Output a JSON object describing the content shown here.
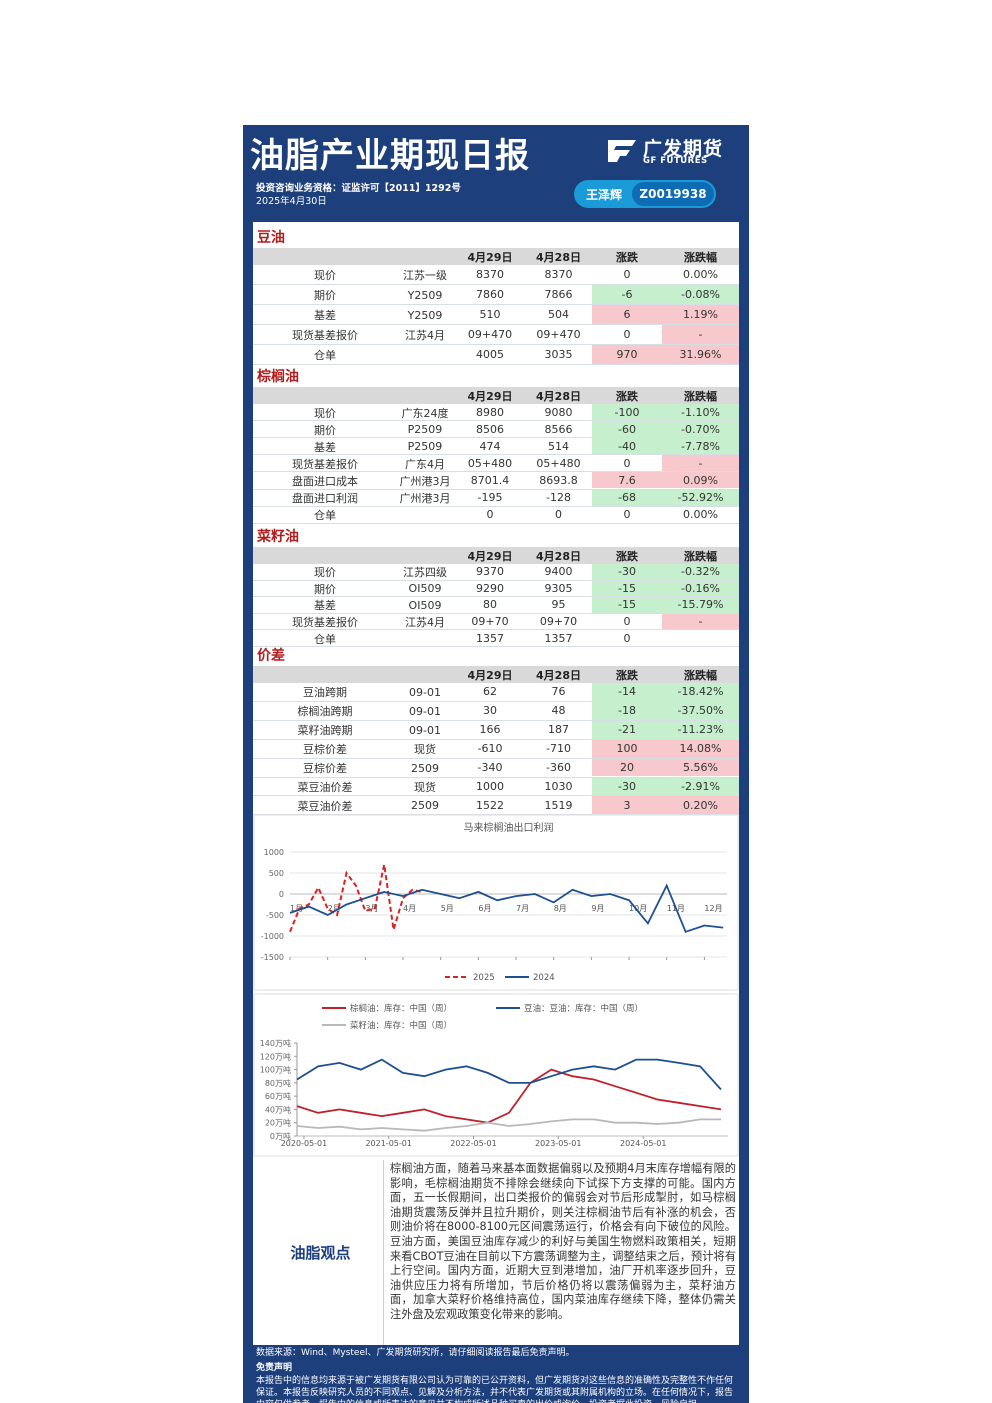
{
  "header": {
    "title": "油脂产业期现日报",
    "logo_cn": "广发期货",
    "logo_en": "GF FUTURES",
    "qualification": "投资咨询业务资格：证监许可【2011】1292号",
    "date": "2025年4月30日",
    "analyst": "王泽辉",
    "license": "Z0019938"
  },
  "sections": [
    {
      "title": "豆油",
      "columns": [
        "4月29日",
        "4月28日",
        "涨跌",
        "涨跌幅"
      ],
      "rows": [
        {
          "name": "现价",
          "spec": "江苏一级",
          "cells": [
            8370,
            8370,
            0,
            "0.00%"
          ]
        },
        {
          "name": "期价",
          "spec": "Y2509",
          "cells": [
            7860,
            7866,
            -6,
            "-0.08%"
          ]
        },
        {
          "name": "基差",
          "spec": "Y2509",
          "cells": [
            510,
            504,
            6,
            "1.19%"
          ]
        },
        {
          "name": "现货基差报价",
          "spec": "江苏4月",
          "cells": [
            "09+470",
            "09+470",
            0,
            "-"
          ]
        },
        {
          "name": "仓单",
          "cells": [
            4005,
            3035,
            970,
            "31.96%"
          ]
        }
      ]
    },
    {
      "title": "棕榈油",
      "columns": [
        "4月29日",
        "4月28日",
        "涨跌",
        "涨跌幅"
      ],
      "rows": [
        {
          "name": "现价",
          "spec": "广东24度",
          "cells": [
            8980,
            9080,
            -100,
            "-1.10%"
          ]
        },
        {
          "name": "期价",
          "spec": "P2509",
          "cells": [
            8506,
            8566,
            -60,
            "-0.70%"
          ]
        },
        {
          "name": "基差",
          "spec": "P2509",
          "cells": [
            474,
            514,
            -40,
            "-7.78%"
          ]
        },
        {
          "name": "现货基差报价",
          "spec": "广东4月",
          "cells": [
            "05+480",
            "05+480",
            0,
            "-"
          ]
        },
        {
          "name": "盘面进口成本",
          "spec": "广州港3月",
          "cells": [
            8701.4,
            8693.8,
            7.6,
            "0.09%"
          ]
        },
        {
          "name": "盘面进口利润",
          "spec": "广州港3月",
          "cells": [
            -195,
            -128,
            -68,
            "-52.92%"
          ]
        },
        {
          "name": "仓单",
          "cells": [
            0,
            0,
            0,
            "0.00%"
          ]
        }
      ]
    },
    {
      "title": "菜籽油",
      "columns": [
        "4月29日",
        "4月28日",
        "涨跌",
        "涨跌幅"
      ],
      "rows": [
        {
          "name": "现价",
          "spec": "江苏四级",
          "cells": [
            9370,
            9400,
            -30,
            "-0.32%"
          ]
        },
        {
          "name": "期价",
          "spec": "OI509",
          "cells": [
            9290,
            9305,
            -15,
            "-0.16%"
          ]
        },
        {
          "name": "基差",
          "spec": "OI509",
          "cells": [
            80,
            95,
            -15,
            "-15.79%"
          ]
        },
        {
          "name": "现货基差报价",
          "spec": "江苏4月",
          "cells": [
            "09+70",
            "09+70",
            0,
            "-"
          ]
        },
        {
          "name": "仓单",
          "cells": [
            1357,
            1357,
            0
          ]
        }
      ]
    },
    {
      "title": "价差",
      "columns": [
        "4月29日",
        "4月28日",
        "涨跌",
        "涨跌幅"
      ],
      "rows": [
        {
          "name": "豆油跨期",
          "spec": "09-01",
          "cells": [
            62,
            76,
            -14,
            "-18.42%"
          ]
        },
        {
          "name": "棕榈油跨期",
          "spec": "09-01",
          "cells": [
            30,
            48,
            -18,
            "-37.50%"
          ]
        },
        {
          "name": "菜籽油跨期",
          "spec": "09-01",
          "cells": [
            166,
            187,
            -21,
            "-11.23%"
          ]
        },
        {
          "name": "豆棕价差",
          "spec": "现货",
          "cells": [
            -610,
            -710,
            100,
            "14.08%"
          ]
        },
        {
          "name": "豆棕价差",
          "spec": "2509",
          "cells": [
            -340,
            -360,
            20,
            "5.56%"
          ]
        },
        {
          "name": "菜豆油价差",
          "spec": "现货",
          "cells": [
            1000,
            1030,
            -30,
            "-2.91%"
          ]
        },
        {
          "name": "菜豆油价差",
          "spec": "2509",
          "cells": [
            1522,
            1519,
            3,
            "0.20%"
          ]
        }
      ]
    }
  ],
  "charts": [
    {
      "type": "line",
      "title": "马来棕榈油出口利润",
      "xlim": [
        1,
        12.6
      ],
      "ylim": [
        -1500,
        1000
      ],
      "yticks": [
        1000,
        500,
        0,
        -500,
        -1000,
        -1500
      ],
      "xticks": [
        {
          "value": 1,
          "label": "1月"
        },
        {
          "value": 2,
          "label": "2月"
        },
        {
          "value": 3,
          "label": "3月"
        },
        {
          "value": 4,
          "label": "4月"
        },
        {
          "value": 5,
          "label": "5月"
        },
        {
          "value": 6,
          "label": "6月"
        },
        {
          "value": 7,
          "label": "7月"
        },
        {
          "value": 8,
          "label": "8月"
        },
        {
          "value": 9,
          "label": "9月"
        },
        {
          "value": 10,
          "label": "10月"
        },
        {
          "value": 11,
          "label": "11月"
        },
        {
          "value": 12,
          "label": "12月"
        }
      ],
      "grid": true,
      "series": [
        {
          "name": "2025",
          "color": "#e02020",
          "style": "dashed",
          "x": [
            1,
            1.25,
            1.5,
            1.75,
            2,
            2.25,
            2.5,
            2.75,
            3,
            3.25,
            3.5,
            3.75,
            4,
            4.25,
            4.5
          ],
          "values": [
            -900,
            -350,
            -250,
            150,
            -350,
            -500,
            500,
            200,
            -400,
            -350,
            700,
            -850,
            -100,
            100,
            50
          ]
        },
        {
          "name": "2024",
          "color": "#1d4f91",
          "style": "solid",
          "x": [
            1,
            1.5,
            2,
            2.5,
            3,
            3.5,
            4,
            4.5,
            5,
            5.5,
            6,
            6.5,
            7,
            7.5,
            8,
            8.5,
            9,
            9.5,
            10,
            10.5,
            11,
            11.5,
            12,
            12.5
          ],
          "values": [
            -450,
            -300,
            -500,
            -250,
            -100,
            50,
            -50,
            100,
            0,
            -100,
            50,
            -150,
            -50,
            0,
            -200,
            100,
            -50,
            0,
            -150,
            -700,
            200,
            -900,
            -750,
            -800
          ]
        }
      ]
    },
    {
      "type": "line",
      "xlim": [
        "2020-04-01",
        "2025-05-01"
      ],
      "ylim": [
        0,
        140
      ],
      "yticks": [
        {
          "value": 0,
          "label": "0万吨"
        },
        {
          "value": 20,
          "label": "20万吨"
        },
        {
          "value": 40,
          "label": "40万吨"
        },
        {
          "value": 60,
          "label": "60万吨"
        },
        {
          "value": 80,
          "label": "80万吨"
        },
        {
          "value": 100,
          "label": "100万吨"
        },
        {
          "value": 120,
          "label": "120万吨"
        },
        {
          "value": 140,
          "label": "140万吨"
        }
      ],
      "xticks": [
        "2020-05-01",
        "2021-05-01",
        "2022-05-01",
        "2023-05-01",
        "2024-05-01"
      ],
      "grid": false,
      "series": [
        {
          "name": "棕榈油：库存：中国（周）",
          "color": "#c0202a",
          "style": "solid",
          "x": [
            "2020-04-01",
            "2020-07-01",
            "2020-10-01",
            "2021-01-01",
            "2021-04-01",
            "2021-07-01",
            "2021-10-01",
            "2022-01-01",
            "2022-04-01",
            "2022-07-01",
            "2022-10-01",
            "2023-01-01",
            "2023-04-01",
            "2023-07-01",
            "2023-10-01",
            "2024-01-01",
            "2024-04-01",
            "2024-07-01",
            "2024-10-01",
            "2025-01-01",
            "2025-04-01"
          ],
          "values": [
            45,
            35,
            40,
            35,
            30,
            35,
            40,
            30,
            25,
            20,
            35,
            80,
            100,
            90,
            85,
            75,
            65,
            55,
            50,
            45,
            40
          ]
        },
        {
          "name": "豆油：豆油：库存：中国（周）",
          "color": "#1d4f91",
          "style": "solid",
          "x": [
            "2020-04-01",
            "2020-07-01",
            "2020-10-01",
            "2021-01-01",
            "2021-04-01",
            "2021-07-01",
            "2021-10-01",
            "2022-01-01",
            "2022-04-01",
            "2022-07-01",
            "2022-10-01",
            "2023-01-01",
            "2023-04-01",
            "2023-07-01",
            "2023-10-01",
            "2024-01-01",
            "2024-04-01",
            "2024-07-01",
            "2024-10-01",
            "2025-01-01",
            "2025-04-01"
          ],
          "values": [
            85,
            105,
            110,
            100,
            115,
            95,
            90,
            100,
            105,
            95,
            80,
            80,
            90,
            100,
            105,
            100,
            115,
            115,
            110,
            105,
            70
          ]
        },
        {
          "name": "菜籽油：库存：中国（周）",
          "color": "#b8b8b8",
          "style": "solid",
          "x": [
            "2020-04-01",
            "2020-07-01",
            "2020-10-01",
            "2021-01-01",
            "2021-04-01",
            "2021-07-01",
            "2021-10-01",
            "2022-01-01",
            "2022-04-01",
            "2022-07-01",
            "2022-10-01",
            "2023-01-01",
            "2023-04-01",
            "2023-07-01",
            "2023-10-01",
            "2024-01-01",
            "2024-04-01",
            "2024-07-01",
            "2024-10-01",
            "2025-01-01",
            "2025-04-01"
          ],
          "values": [
            15,
            12,
            14,
            10,
            12,
            10,
            8,
            12,
            15,
            20,
            15,
            18,
            22,
            25,
            25,
            20,
            20,
            18,
            20,
            25,
            25
          ]
        }
      ]
    }
  ],
  "opinion": {
    "label": "油脂观点",
    "text": "棕榈油方面，随着马来基本面数据偏弱以及预期4月末库存增幅有限的影响，毛棕榈油期货不排除会继续向下试探下方支撑的可能。国内方面，五一长假期间，出口类报价的偏弱会对节后形成掣肘，如马棕榈油期货震荡反弹并且拉升期价，则关注棕榈油节后有补涨的机会，否则油价将在8000-8100元区间震荡运行，价格会有向下破位的风险。豆油方面，美国豆油库存减少的利好与美国生物燃料政策相关，短期来看CBOT豆油在目前以下方震荡调整为主，调整结束之后，预计将有上行空间。国内方面，近期大豆到港增加，油厂开机率逐步回升，豆油供应压力将有所增加，节后价格仍将以震荡偏弱为主，菜籽油方面，加拿大菜籽价格维持高位，国内菜油库存继续下降，整体仍需关注外盘及宏观政策变化带来的影响。"
  },
  "footer": {
    "source": "数据来源：Wind、Mysteel、广发期货研究所，请仔细阅读报告最后免责声明。",
    "disclaimer_title": "免责声明",
    "disclaimer": "本报告中的信息均来源于被广发期货有限公司认为可靠的已公开资料，但广发期货对这些信息的准确性及完整性不作任何保证。本报告反映研究人员的不同观点、见解及分析方法，并不代表广发期货或其附属机构的立场。在任何情况下，报告内容仅供参考，报告中的信息或所表达的意见并不构成所述品种买卖的出价或询价，投资者据此投资，风险自担。"
  }
}
